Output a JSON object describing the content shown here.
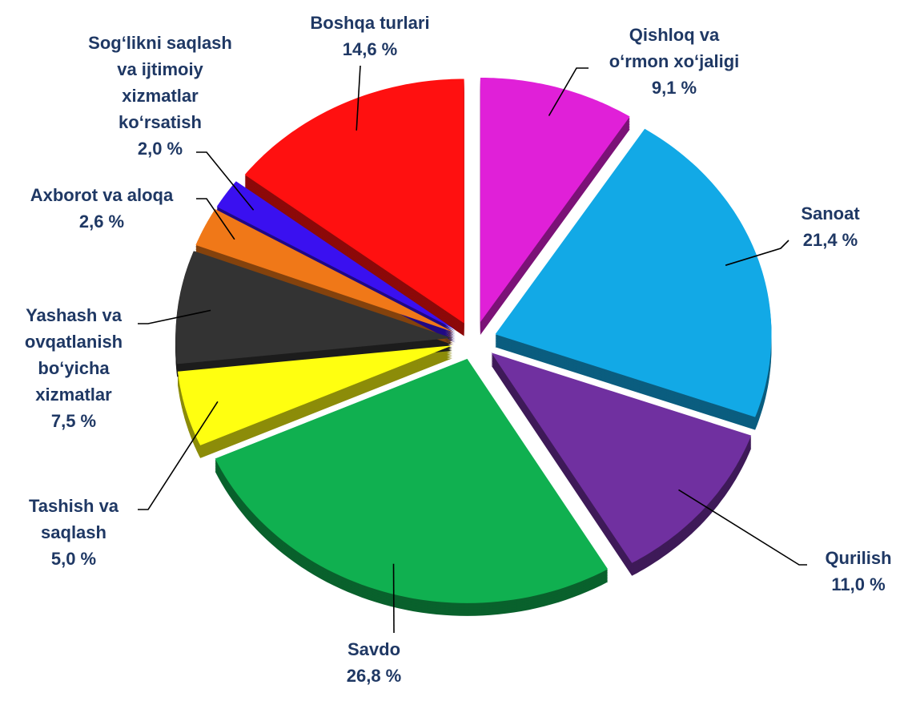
{
  "chart_data": {
    "type": "pie",
    "categories": [
      [
        "Qishloq va",
        "o‘rmon xo‘jaligi"
      ],
      [
        "Sanoat"
      ],
      [
        "Qurilish"
      ],
      [
        "Savdo"
      ],
      [
        "Tashish va",
        "saqlash"
      ],
      [
        "Yashash va",
        "ovqatlanish",
        "bo‘yicha",
        "xizmatlar"
      ],
      [
        "Axborot va aloqa"
      ],
      [
        "Sog‘likni saqlash",
        "va ijtimoiy",
        "xizmatlar",
        "ko‘rsatish"
      ],
      [
        "Boshqa turlari"
      ]
    ],
    "values": [
      9.1,
      21.4,
      11.0,
      26.8,
      5.0,
      7.5,
      2.6,
      2.0,
      14.6
    ],
    "value_labels": [
      "9,1 %",
      "21,4 %",
      "11,0 %",
      "26,8 %",
      "5,0 %",
      "7,5 %",
      "2,6 %",
      "2,0 %",
      "14,6 %"
    ],
    "colors": [
      "#e020d8",
      "#12a9e6",
      "#7030a0",
      "#10b050",
      "#ffff10",
      "#333333",
      "#f07818",
      "#3a10f0",
      "#ff1010"
    ]
  }
}
